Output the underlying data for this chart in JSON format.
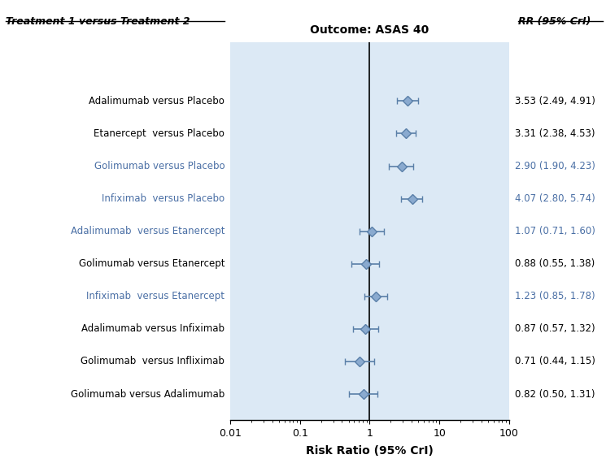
{
  "title": "Outcome: ASAS 40",
  "xlabel": "Risk Ratio (95% CrI)",
  "col_header_left": "Treatment 1 versus Treatment 2",
  "col_header_right": "RR (95% CrI)",
  "plot_bg": "#dce9f5",
  "rows": [
    {
      "label": "Adalimumab versus Placebo",
      "rr": 3.53,
      "lo": 2.49,
      "hi": 4.91,
      "rr_text": "3.53 (2.49, 4.91)",
      "direct": true,
      "text_color": "#000000"
    },
    {
      "label": "Etanercept  versus Placebo",
      "rr": 3.31,
      "lo": 2.38,
      "hi": 4.53,
      "rr_text": "3.31 (2.38, 4.53)",
      "direct": true,
      "text_color": "#000000"
    },
    {
      "label": "Golimumab versus Placebo",
      "rr": 2.9,
      "lo": 1.9,
      "hi": 4.23,
      "rr_text": "2.90 (1.90, 4.23)",
      "direct": true,
      "text_color": "#4a6fa5"
    },
    {
      "label": "Infiximab  versus Placebo",
      "rr": 4.07,
      "lo": 2.8,
      "hi": 5.74,
      "rr_text": "4.07 (2.80, 5.74)",
      "direct": true,
      "text_color": "#4a6fa5"
    },
    {
      "label": "Adalimumab  versus Etanercept",
      "rr": 1.07,
      "lo": 0.71,
      "hi": 1.6,
      "rr_text": "1.07 (0.71, 1.60)",
      "direct": false,
      "text_color": "#4a6fa5"
    },
    {
      "label": "Golimumab versus Etanercept",
      "rr": 0.88,
      "lo": 0.55,
      "hi": 1.38,
      "rr_text": "0.88 (0.55, 1.38)",
      "direct": false,
      "text_color": "#000000"
    },
    {
      "label": "Infiximab  versus Etanercept",
      "rr": 1.23,
      "lo": 0.85,
      "hi": 1.78,
      "rr_text": "1.23 (0.85, 1.78)",
      "direct": false,
      "text_color": "#4a6fa5"
    },
    {
      "label": "Adalimumab versus Infiximab",
      "rr": 0.87,
      "lo": 0.57,
      "hi": 1.32,
      "rr_text": "0.87 (0.57, 1.32)",
      "direct": false,
      "text_color": "#000000"
    },
    {
      "label": "Golimumab  versus Infliximab",
      "rr": 0.71,
      "lo": 0.44,
      "hi": 1.15,
      "rr_text": "0.71 (0.44, 1.15)",
      "direct": false,
      "text_color": "#000000"
    },
    {
      "label": "Golimumab versus Adalimumab",
      "rr": 0.82,
      "lo": 0.5,
      "hi": 1.31,
      "rr_text": "0.82 (0.50, 1.31)",
      "direct": false,
      "text_color": "#000000"
    }
  ],
  "xmin": 0.01,
  "xmax": 100,
  "vline": 1.0,
  "marker_color_face": "#8aaacf",
  "marker_color_edge": "#5a7fa8",
  "marker_size": 6,
  "capsize": 3,
  "elinewidth": 1.2,
  "capthick": 1.2
}
